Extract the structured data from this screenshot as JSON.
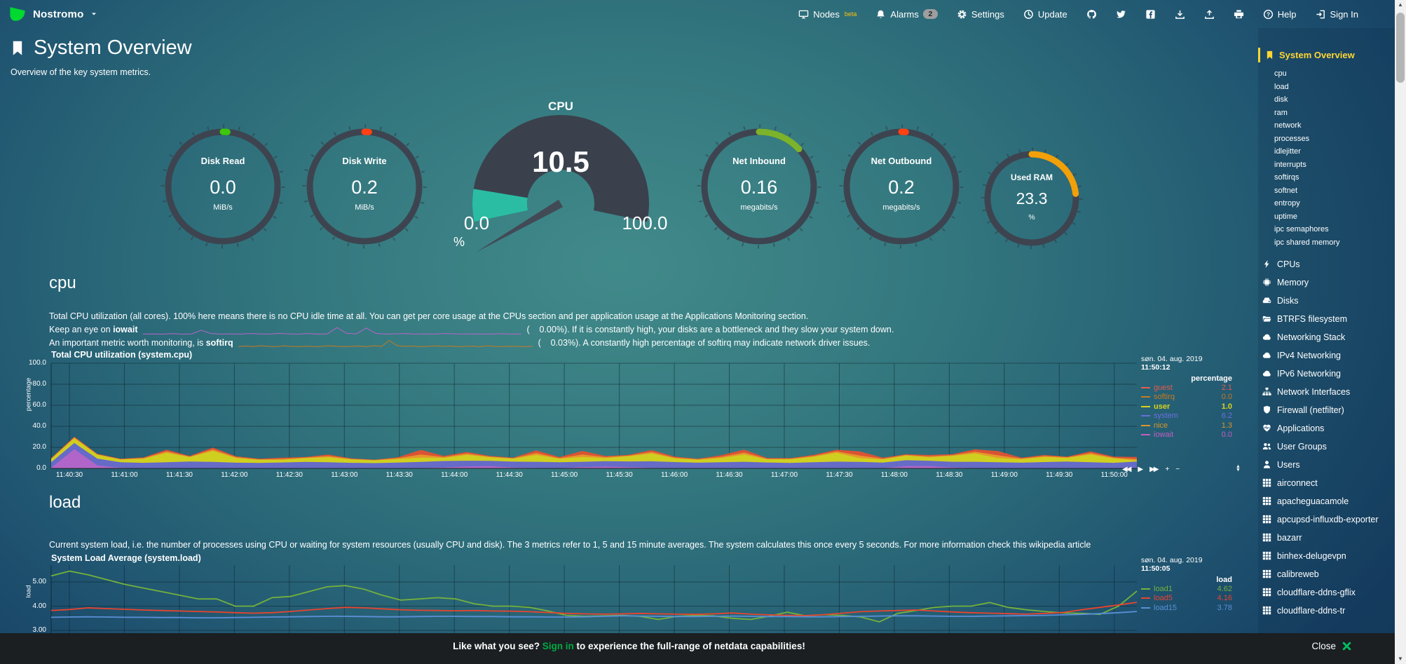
{
  "header": {
    "hostname": "Nostromo",
    "nav": {
      "items": [
        {
          "name": "nodes",
          "icon": "monitor",
          "label": "Nodes",
          "sup": "beta"
        },
        {
          "name": "alarms",
          "icon": "bell",
          "label": "Alarms",
          "badge": "2"
        },
        {
          "name": "settings",
          "icon": "gear",
          "label": "Settings"
        },
        {
          "name": "update",
          "icon": "clock",
          "label": "Update"
        },
        {
          "name": "github",
          "icon": "github"
        },
        {
          "name": "twitter",
          "icon": "twitter"
        },
        {
          "name": "facebook",
          "icon": "facebook"
        },
        {
          "name": "import",
          "icon": "download"
        },
        {
          "name": "export",
          "icon": "upload"
        },
        {
          "name": "print",
          "icon": "print"
        },
        {
          "name": "help",
          "icon": "help",
          "label": "Help"
        },
        {
          "name": "signin",
          "icon": "signin",
          "label": "Sign In"
        }
      ]
    }
  },
  "page": {
    "title": "System Overview",
    "subtitle": "Overview of the key system metrics."
  },
  "gauges": {
    "disk_read": {
      "label": "Disk Read",
      "value": "0.0",
      "unit": "MiB/s",
      "color": "#3ec70c",
      "fraction": 0.013
    },
    "disk_write": {
      "label": "Disk Write",
      "value": "0.2",
      "unit": "MiB/s",
      "color": "#ff4113",
      "fraction": 0.013
    },
    "cpu": {
      "label": "CPU",
      "value": "10.5",
      "min": "0.0",
      "max": "100.0",
      "unit": "%",
      "color": "#2abda4",
      "fraction": 0.105
    },
    "net_inbound": {
      "label": "Net Inbound",
      "value": "0.16",
      "unit": "megabits/s",
      "color": "#7cb32a",
      "fraction": 0.13
    },
    "net_outbound": {
      "label": "Net Outbound",
      "value": "0.2",
      "unit": "megabits/s",
      "color": "#ff4113",
      "fraction": 0.013
    },
    "used_ram": {
      "label": "Used RAM",
      "value": "23.3",
      "unit": "%",
      "color": "#f1a00a",
      "fraction": 0.233
    }
  },
  "cpu_section": {
    "heading": "cpu",
    "desc1": "Total CPU utilization (all cores). 100% here means there is no CPU idle time at all. You can get per core usage at the CPUs section and per application usage at the Applications Monitoring section.",
    "desc2_prefix": "Keep an eye on",
    "desc2_term": "iowait",
    "desc2_suffix": "(    0.00%). If it is constantly high, your disks are a bottleneck and they slow your system down.",
    "desc3_prefix": "An important metric worth monitoring, is",
    "desc3_term": "softirq",
    "desc3_suffix": "(    0.03%). A constantly high percentage of softirq may indicate network driver issues.",
    "iowait_spark": [
      0,
      0.03,
      0,
      0.06,
      0,
      0.03,
      0.5,
      0.08,
      0,
      0.04,
      0,
      0.08,
      0.04,
      0,
      0.1,
      0.04,
      0,
      0.08,
      0,
      0.04,
      0.85,
      0.1,
      0.04,
      0.8,
      0.1,
      0,
      0.04,
      0.08,
      0,
      0.04,
      0,
      0.08,
      0.04,
      0,
      0.04,
      0,
      0.02,
      0.05,
      0,
      0.02
    ],
    "softirq_spark": [
      0.12,
      0.18,
      0.1,
      0.22,
      0.14,
      0.1,
      0.2,
      0.14,
      0.1,
      0.16,
      0.1,
      0.14,
      0.22,
      0.16,
      0.1,
      0.14,
      0.18,
      0.1,
      0.22,
      0.14,
      0.9,
      0.25,
      0.14,
      0.18,
      0.1,
      0.14,
      0.2,
      0.14,
      0.18,
      0.1,
      0.14,
      0.18,
      0.1,
      0.2,
      0.14,
      0.1,
      0.16,
      0.14,
      0.1,
      0.14
    ]
  },
  "load_section": {
    "heading": "load",
    "desc": "Current system load, i.e. the number of processes using CPU or waiting for system resources (usually CPU and disk). The 3 metrics refer to 1, 5 and 15 minute averages. The system calculates this once every 5 seconds. For more information check this wikipedia article"
  },
  "toolbar": {
    "rewind": "◀◀",
    "play": "▶",
    "forward": "▶▶",
    "zoom_in": "+",
    "zoom_out": "−"
  },
  "chart_data": [
    {
      "type": "area",
      "title": "Total CPU utilization (system.cpu)",
      "ylabel": "percentage",
      "ylim": [
        0,
        100
      ],
      "yticks": [
        "100.0",
        "80.0",
        "60.0",
        "40.0",
        "20.0",
        "0.0"
      ],
      "x_labels": [
        "11:40:30",
        "11:41:00",
        "11:41:30",
        "11:42:00",
        "11:42:30",
        "11:43:00",
        "11:43:30",
        "11:44:00",
        "11:44:30",
        "11:45:00",
        "11:45:30",
        "11:46:00",
        "11:46:30",
        "11:47:00",
        "11:47:30",
        "11:48:00",
        "11:48:30",
        "11:49:00",
        "11:49:30",
        "11:50:00"
      ],
      "date": "søn. 04. aug. 2019",
      "time": "11:50:12",
      "unit_header": "percentage",
      "legend": [
        {
          "name": "guest",
          "value": "2.1",
          "color": "#e75b4e"
        },
        {
          "name": "softirq",
          "value": "0.0",
          "color": "#c87a1e"
        },
        {
          "name": "user",
          "value": "1.0",
          "color": "#d8d21c",
          "bold": true
        },
        {
          "name": "system",
          "value": "6.2",
          "color": "#6a6fdc"
        },
        {
          "name": "nice",
          "value": "1.3",
          "color": "#dc9528"
        },
        {
          "name": "iowait",
          "value": "0.0",
          "color": "#c25ec2"
        }
      ],
      "series": [
        {
          "name": "softirq",
          "color": "#c87a1e",
          "values": [
            0.3,
            0.3,
            0.3,
            0.3,
            0.3,
            0.3,
            0.3,
            0.3,
            0.3,
            0.3,
            0.3,
            0.3,
            0.3,
            0.3,
            0.3,
            0.3,
            0.3,
            0.3,
            0.3,
            0.3,
            0.3,
            0.3,
            0.3,
            0.3,
            0.3,
            0.3,
            0.3,
            0.3,
            0.3,
            0.3,
            0.3,
            0.3,
            0.3,
            0.3,
            0.3,
            0.3,
            0.3,
            0.3,
            0.3,
            0.3,
            0.3,
            0.3,
            0.3,
            0.3,
            0.3,
            0.3,
            0.3,
            0.3
          ]
        },
        {
          "name": "iowait",
          "color": "#b765c9",
          "values": [
            0.3,
            18.0,
            2.5,
            0.2,
            0,
            0,
            0,
            0,
            0,
            0,
            0,
            0,
            0,
            0,
            0,
            0,
            0,
            0.6,
            1.6,
            1.8,
            0.6,
            0,
            0,
            0.8,
            1.6,
            0.9,
            0.2,
            0,
            0,
            0,
            0,
            0,
            0,
            0,
            0,
            0,
            0,
            1.8,
            2.0,
            0.6,
            0,
            0,
            0,
            0,
            0,
            0,
            0,
            0
          ]
        },
        {
          "name": "system",
          "color": "#5c63d6",
          "values": [
            5.2,
            5.8,
            6.5,
            5.4,
            5.0,
            5.6,
            6.2,
            5.8,
            5.1,
            4.8,
            5.3,
            5.9,
            5.5,
            5.0,
            4.7,
            5.2,
            5.8,
            6.1,
            5.4,
            5.0,
            5.5,
            6.0,
            5.6,
            5.2,
            4.9,
            5.4,
            6.2,
            5.7,
            5.1,
            5.6,
            6.0,
            5.3,
            4.9,
            5.5,
            6.1,
            5.8,
            5.2,
            5.6,
            5.0,
            5.4,
            6.0,
            5.6,
            5.1,
            5.7,
            6.2,
            5.5,
            5.0,
            6.2
          ]
        },
        {
          "name": "user",
          "color": "#cdd41f",
          "values": [
            3.0,
            4.5,
            3.5,
            2.5,
            3.8,
            9.0,
            4.2,
            10.5,
            4.5,
            3.0,
            2.5,
            3.5,
            4.8,
            3.2,
            2.6,
            3.4,
            4.2,
            3.0,
            5.5,
            3.5,
            2.8,
            6.5,
            3.2,
            4.5,
            3.0,
            5.0,
            7.5,
            3.5,
            2.8,
            4.0,
            6.8,
            3.0,
            3.5,
            5.2,
            8.5,
            3.8,
            3.0,
            4.5,
            3.2,
            5.5,
            8.0,
            4.0,
            3.3,
            4.8,
            3.5,
            7.5,
            4.2,
            1.0
          ]
        },
        {
          "name": "nice",
          "color": "#e89b2c",
          "values": [
            0.5,
            0.8,
            0.6,
            0.4,
            0.7,
            1.3,
            0.6,
            1.4,
            0.8,
            0.5,
            0.9,
            0.6,
            1.1,
            0.5,
            0.4,
            0.8,
            2.8,
            0.9,
            1.3,
            0.6,
            0.5,
            1.8,
            0.8,
            2.3,
            0.9,
            0.6,
            1.4,
            0.8,
            0.5,
            1.1,
            1.9,
            0.6,
            0.5,
            0.9,
            1.3,
            2.4,
            0.8,
            0.6,
            1.0,
            0.8,
            1.6,
            2.5,
            0.7,
            0.9,
            0.6,
            1.3,
            0.8,
            1.3
          ]
        },
        {
          "name": "guest",
          "color": "#e8502e",
          "values": [
            0.5,
            0.8,
            0.5,
            0.3,
            0.6,
            1.5,
            0.5,
            1.8,
            0.8,
            0.5,
            1.2,
            0.6,
            1.5,
            0.5,
            0.3,
            0.8,
            4.5,
            1.0,
            1.5,
            0.6,
            0.5,
            2.5,
            0.8,
            3.5,
            1.0,
            0.6,
            1.8,
            0.8,
            0.5,
            1.5,
            2.8,
            0.6,
            0.5,
            1.0,
            1.5,
            3.8,
            0.8,
            0.6,
            1.2,
            0.8,
            2.2,
            4.0,
            0.7,
            1.0,
            0.6,
            1.5,
            0.8,
            2.1
          ]
        }
      ]
    },
    {
      "type": "line",
      "title": "System Load Average (system.load)",
      "ylabel": "load",
      "yticks": [
        "5.00",
        "4.00",
        "3.00"
      ],
      "date": "søn. 04. aug. 2019",
      "time": "11:50:05",
      "unit_header": "load",
      "legend": [
        {
          "name": "load1",
          "value": "4.62",
          "color": "#74b13c"
        },
        {
          "name": "load5",
          "value": "4.16",
          "color": "#e8442e"
        },
        {
          "name": "load15",
          "value": "3.78",
          "color": "#5b8fd6"
        }
      ],
      "series": [
        {
          "name": "load1",
          "color": "#74b13c",
          "values": [
            5.25,
            5.45,
            5.3,
            5.1,
            4.9,
            4.75,
            4.6,
            4.45,
            4.3,
            4.3,
            4.0,
            4.0,
            4.35,
            4.4,
            4.6,
            4.8,
            4.85,
            4.7,
            4.45,
            4.25,
            4.3,
            4.35,
            4.3,
            4.1,
            4.0,
            4.0,
            3.95,
            3.8,
            3.62,
            3.58,
            3.6,
            3.62,
            3.58,
            3.45,
            3.58,
            3.62,
            3.6,
            3.5,
            3.45,
            3.58,
            3.75,
            3.6,
            3.65,
            3.62,
            3.55,
            3.35,
            3.7,
            3.82,
            3.95,
            4.0,
            4.0,
            4.15,
            3.95,
            3.85,
            3.78,
            3.72,
            3.7,
            3.66,
            4.0,
            4.62
          ]
        },
        {
          "name": "load5",
          "color": "#e8442e",
          "values": [
            3.82,
            3.86,
            3.93,
            3.9,
            3.87,
            3.84,
            3.82,
            3.8,
            3.78,
            3.76,
            3.73,
            3.71,
            3.73,
            3.78,
            3.84,
            3.9,
            3.95,
            3.93,
            3.89,
            3.85,
            3.83,
            3.82,
            3.81,
            3.82,
            3.8,
            3.79,
            3.77,
            3.74,
            3.7,
            3.68,
            3.67,
            3.68,
            3.7,
            3.68,
            3.67,
            3.66,
            3.68,
            3.72,
            3.67,
            3.64,
            3.62,
            3.61,
            3.65,
            3.71,
            3.77,
            3.8,
            3.82,
            3.84,
            3.8,
            3.76,
            3.73,
            3.71,
            3.69,
            3.67,
            3.7,
            3.74,
            3.85,
            3.95,
            4.05,
            4.16
          ]
        },
        {
          "name": "load15",
          "color": "#5b8fd6",
          "values": [
            3.54,
            3.55,
            3.56,
            3.55,
            3.54,
            3.54,
            3.53,
            3.53,
            3.52,
            3.52,
            3.53,
            3.54,
            3.55,
            3.56,
            3.57,
            3.58,
            3.58,
            3.57,
            3.56,
            3.56,
            3.57,
            3.58,
            3.58,
            3.57,
            3.57,
            3.56,
            3.56,
            3.55,
            3.55,
            3.56,
            3.58,
            3.6,
            3.59,
            3.58,
            3.57,
            3.57,
            3.58,
            3.59,
            3.58,
            3.57,
            3.57,
            3.56,
            3.56,
            3.57,
            3.58,
            3.59,
            3.6,
            3.6,
            3.59,
            3.58,
            3.58,
            3.59,
            3.6,
            3.61,
            3.62,
            3.64,
            3.66,
            3.69,
            3.73,
            3.78
          ]
        }
      ]
    }
  ],
  "sidebar": {
    "active": "System Overview",
    "subitems": [
      "cpu",
      "load",
      "disk",
      "ram",
      "network",
      "processes",
      "idlejitter",
      "interrupts",
      "softirqs",
      "softnet",
      "entropy",
      "uptime",
      "ipc semaphores",
      "ipc shared memory"
    ],
    "sections": [
      {
        "icon": "bolt",
        "label": "CPUs"
      },
      {
        "icon": "microchip",
        "label": "Memory"
      },
      {
        "icon": "hdd",
        "label": "Disks"
      },
      {
        "icon": "folder",
        "label": "BTRFS filesystem"
      },
      {
        "icon": "cloud",
        "label": "Networking Stack"
      },
      {
        "icon": "cloud",
        "label": "IPv4 Networking"
      },
      {
        "icon": "cloud",
        "label": "IPv6 Networking"
      },
      {
        "icon": "sitemap",
        "label": "Network Interfaces"
      },
      {
        "icon": "shield",
        "label": "Firewall (netfilter)"
      },
      {
        "icon": "heartbeat",
        "label": "Applications"
      },
      {
        "icon": "users",
        "label": "User Groups"
      },
      {
        "icon": "user",
        "label": "Users"
      },
      {
        "icon": "grid",
        "label": "airconnect"
      },
      {
        "icon": "grid",
        "label": "apacheguacamole"
      },
      {
        "icon": "grid",
        "label": "apcupsd-influxdb-exporter"
      },
      {
        "icon": "grid",
        "label": "bazarr"
      },
      {
        "icon": "grid",
        "label": "binhex-delugevpn"
      },
      {
        "icon": "grid",
        "label": "calibreweb"
      },
      {
        "icon": "grid",
        "label": "cloudflare-ddns-gflix"
      },
      {
        "icon": "grid",
        "label": "cloudflare-ddns-tr"
      }
    ]
  },
  "footer": {
    "message_prefix": "Like what you see?",
    "signin": "Sign in",
    "message_suffix": "to experience the full-range of netdata capabilities!",
    "close": "Close"
  }
}
